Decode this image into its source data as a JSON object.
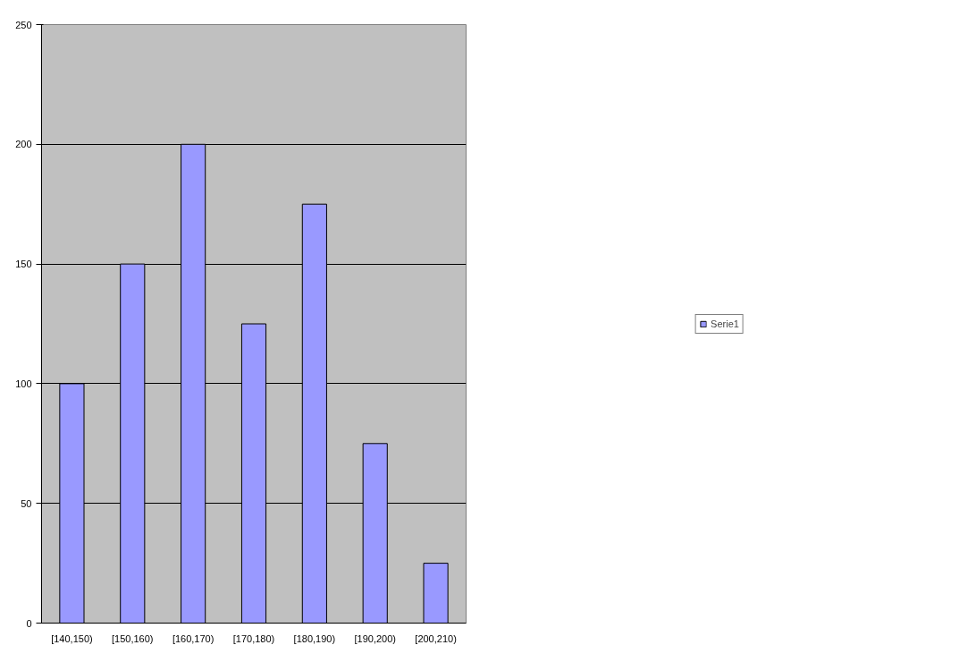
{
  "chart_data": {
    "type": "bar",
    "categories": [
      "[140,150)",
      "[150,160)",
      "[160,170)",
      "[170,180)",
      "[180,190)",
      "[190,200)",
      "[200,210)"
    ],
    "series": [
      {
        "name": "Serie1",
        "color": "#9999ff",
        "values": [
          100,
          150,
          200,
          125,
          175,
          75,
          25
        ]
      }
    ],
    "ylim": [
      0,
      250
    ],
    "yticks": [
      0,
      50,
      100,
      150,
      200,
      250
    ],
    "grid": "y",
    "legend": "right"
  }
}
